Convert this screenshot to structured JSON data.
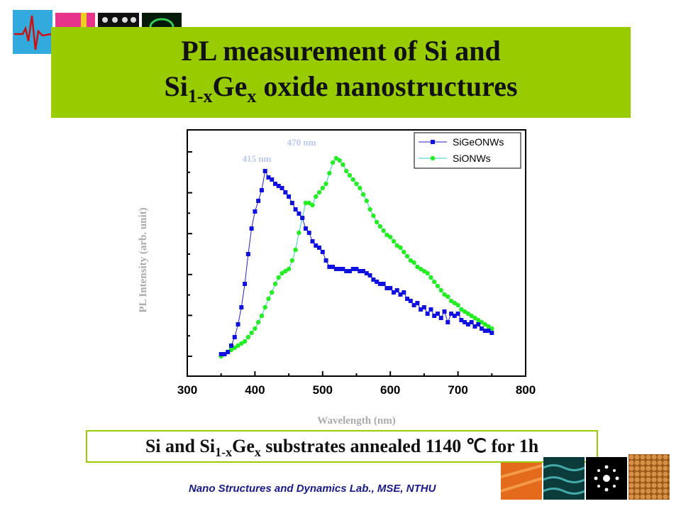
{
  "slide": {
    "title_line1": "PL measurement of Si and",
    "title_line2_prefix": "Si",
    "title_line2_sub1": "1-x",
    "title_line2_mid": "Ge",
    "title_line2_sub2": "x",
    "title_line2_suffix": " oxide nanostructures",
    "caption_prefix": "Si and Si",
    "caption_sub1": "1-x",
    "caption_mid": "Ge",
    "caption_sub2": "x",
    "caption_suffix": " substrates annealed 1140 ℃ for 1h",
    "footer": "Nano Structures and Dynamics Lab., MSE, NTHU",
    "accent_color": "#99cc00"
  },
  "chart_data": {
    "type": "scatter",
    "title": "",
    "xlabel": "Wavelength (nm)",
    "ylabel": "PL Intensity (arb. unit)",
    "xlim": [
      300,
      800
    ],
    "xticks": [
      "300",
      "400",
      "500",
      "600",
      "700",
      "800"
    ],
    "legend_position": "top-right",
    "annotations": [
      "415 nm",
      "470 nm"
    ],
    "series": [
      {
        "name": "SiGeONWs",
        "marker": "square",
        "color": "#1010e0",
        "x": [
          350,
          355,
          360,
          365,
          370,
          375,
          380,
          385,
          390,
          395,
          400,
          405,
          410,
          415,
          420,
          425,
          430,
          435,
          440,
          445,
          450,
          455,
          460,
          465,
          470,
          475,
          480,
          485,
          490,
          495,
          500,
          505,
          510,
          515,
          520,
          525,
          530,
          535,
          540,
          545,
          550,
          555,
          560,
          565,
          570,
          575,
          580,
          585,
          590,
          595,
          600,
          605,
          610,
          615,
          620,
          625,
          630,
          635,
          640,
          645,
          650,
          655,
          660,
          665,
          670,
          675,
          680,
          685,
          690,
          695,
          700,
          705,
          710,
          715,
          720,
          725,
          730,
          735,
          740,
          745,
          750
        ],
        "y": [
          0.02,
          0.02,
          0.03,
          0.06,
          0.1,
          0.16,
          0.24,
          0.35,
          0.49,
          0.61,
          0.69,
          0.74,
          0.79,
          0.88,
          0.85,
          0.84,
          0.82,
          0.81,
          0.8,
          0.78,
          0.76,
          0.73,
          0.7,
          0.68,
          0.66,
          0.61,
          0.59,
          0.55,
          0.53,
          0.52,
          0.5,
          0.46,
          0.43,
          0.43,
          0.42,
          0.42,
          0.42,
          0.41,
          0.41,
          0.42,
          0.42,
          0.41,
          0.41,
          0.4,
          0.39,
          0.37,
          0.36,
          0.35,
          0.35,
          0.33,
          0.33,
          0.31,
          0.32,
          0.3,
          0.31,
          0.28,
          0.27,
          0.25,
          0.26,
          0.23,
          0.24,
          0.21,
          0.23,
          0.2,
          0.21,
          0.19,
          0.22,
          0.17,
          0.21,
          0.2,
          0.21,
          0.18,
          0.17,
          0.16,
          0.17,
          0.15,
          0.16,
          0.14,
          0.13,
          0.13,
          0.12
        ]
      },
      {
        "name": "SiONWs",
        "marker": "circle",
        "color": "#22ee22",
        "x": [
          350,
          355,
          360,
          365,
          370,
          375,
          380,
          385,
          390,
          395,
          400,
          405,
          410,
          415,
          420,
          425,
          430,
          435,
          440,
          445,
          450,
          455,
          460,
          465,
          470,
          475,
          480,
          485,
          490,
          495,
          500,
          505,
          510,
          515,
          520,
          525,
          530,
          535,
          540,
          545,
          550,
          555,
          560,
          565,
          570,
          575,
          580,
          585,
          590,
          595,
          600,
          605,
          610,
          615,
          620,
          625,
          630,
          635,
          640,
          645,
          650,
          655,
          660,
          665,
          670,
          675,
          680,
          685,
          690,
          695,
          700,
          705,
          710,
          715,
          720,
          725,
          730,
          735,
          740,
          745,
          750
        ],
        "y": [
          0.01,
          0.02,
          0.03,
          0.04,
          0.05,
          0.06,
          0.07,
          0.08,
          0.1,
          0.12,
          0.14,
          0.17,
          0.2,
          0.24,
          0.28,
          0.31,
          0.35,
          0.38,
          0.4,
          0.41,
          0.42,
          0.46,
          0.51,
          0.59,
          0.66,
          0.73,
          0.73,
          0.72,
          0.76,
          0.78,
          0.8,
          0.82,
          0.87,
          0.92,
          0.94,
          0.93,
          0.91,
          0.88,
          0.86,
          0.84,
          0.82,
          0.8,
          0.77,
          0.74,
          0.7,
          0.67,
          0.64,
          0.62,
          0.6,
          0.58,
          0.57,
          0.55,
          0.53,
          0.52,
          0.5,
          0.48,
          0.46,
          0.45,
          0.43,
          0.42,
          0.41,
          0.4,
          0.38,
          0.36,
          0.34,
          0.32,
          0.3,
          0.29,
          0.27,
          0.26,
          0.25,
          0.23,
          0.22,
          0.21,
          0.2,
          0.19,
          0.18,
          0.17,
          0.16,
          0.15,
          0.14
        ]
      }
    ]
  }
}
